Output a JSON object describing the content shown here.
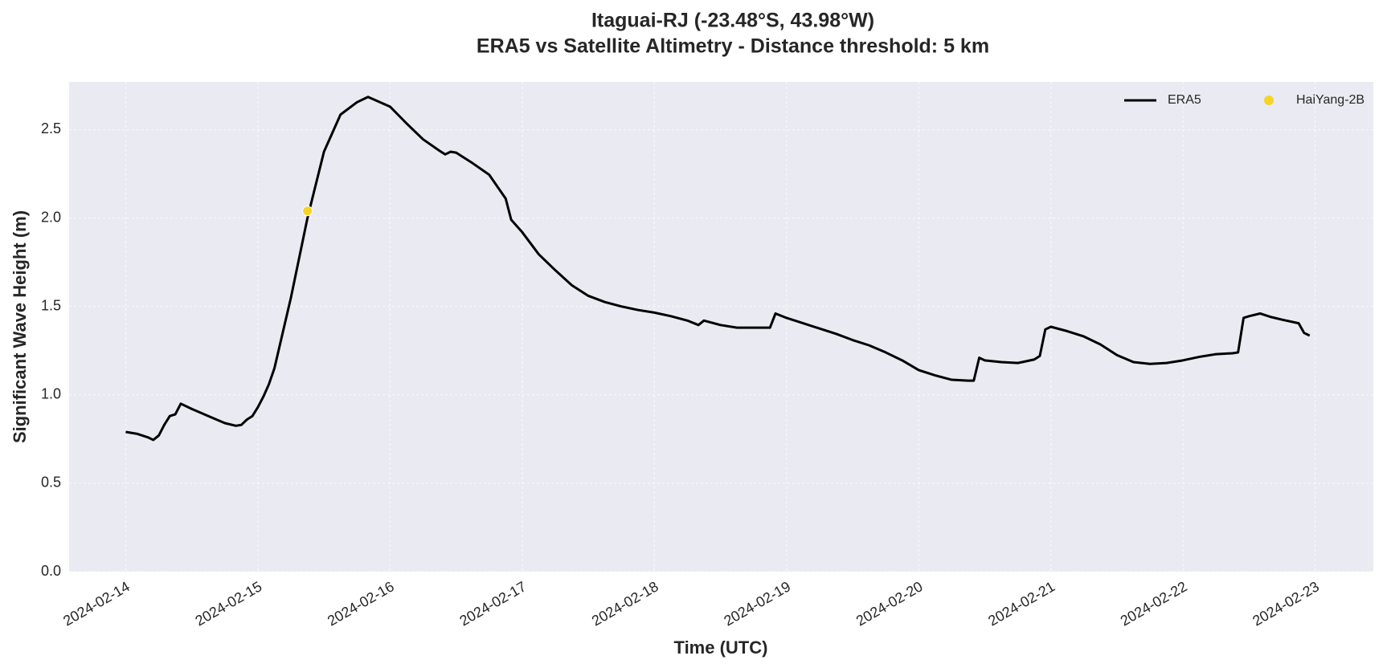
{
  "chart_data": {
    "type": "line",
    "title": "Itaguai-RJ (-23.48°S, 43.98°W)",
    "subtitle": "ERA5 vs Satellite Altimetry - Distance threshold: 5 km",
    "x_label": "Time (UTC)",
    "y_label": "Significant Wave Height (m)",
    "xlim": [
      "2024-02-13T13:43",
      "2024-02-23T10:34"
    ],
    "xticks": [
      "2024-02-14",
      "2024-02-15",
      "2024-02-16",
      "2024-02-17",
      "2024-02-18",
      "2024-02-19",
      "2024-02-20",
      "2024-02-21",
      "2024-02-22",
      "2024-02-23"
    ],
    "ylim": [
      0,
      2.77
    ],
    "yticks": [
      {
        "value": 0,
        "label": "0.0"
      },
      {
        "value": 0.5,
        "label": "0.5"
      },
      {
        "value": 1,
        "label": "1.0"
      },
      {
        "value": 1.5,
        "label": "1.5"
      },
      {
        "value": 2,
        "label": "2.0"
      },
      {
        "value": 2.5,
        "label": "2.5"
      }
    ],
    "grid": true,
    "background": "#eaeaf2",
    "legend": "upper right",
    "series": [
      {
        "name": "ERA5",
        "type": "line",
        "color": "#000000",
        "x": [
          "2024-02-14T00:00",
          "2024-02-14T02:00",
          "2024-02-14T04:00",
          "2024-02-14T05:00",
          "2024-02-14T06:00",
          "2024-02-14T07:00",
          "2024-02-14T08:00",
          "2024-02-14T09:00",
          "2024-02-14T10:00",
          "2024-02-14T12:00",
          "2024-02-14T15:00",
          "2024-02-14T18:00",
          "2024-02-14T20:00",
          "2024-02-14T21:00",
          "2024-02-14T22:00",
          "2024-02-14T23:00",
          "2024-02-15T00:00",
          "2024-02-15T01:00",
          "2024-02-15T02:00",
          "2024-02-15T03:00",
          "2024-02-15T06:00",
          "2024-02-15T09:00",
          "2024-02-15T12:00",
          "2024-02-15T15:00",
          "2024-02-15T18:00",
          "2024-02-15T20:00",
          "2024-02-16T00:00",
          "2024-02-16T03:00",
          "2024-02-16T06:00",
          "2024-02-16T09:00",
          "2024-02-16T10:00",
          "2024-02-16T11:00",
          "2024-02-16T12:00",
          "2024-02-16T15:00",
          "2024-02-16T18:00",
          "2024-02-16T21:00",
          "2024-02-16T22:00",
          "2024-02-17T00:00",
          "2024-02-17T03:00",
          "2024-02-17T06:00",
          "2024-02-17T09:00",
          "2024-02-17T12:00",
          "2024-02-17T15:00",
          "2024-02-17T18:00",
          "2024-02-17T21:00",
          "2024-02-18T00:00",
          "2024-02-18T03:00",
          "2024-02-18T06:00",
          "2024-02-18T08:00",
          "2024-02-18T09:00",
          "2024-02-18T12:00",
          "2024-02-18T15:00",
          "2024-02-18T18:00",
          "2024-02-18T21:00",
          "2024-02-18T22:00",
          "2024-02-19T00:00",
          "2024-02-19T03:00",
          "2024-02-19T06:00",
          "2024-02-19T09:00",
          "2024-02-19T12:00",
          "2024-02-19T15:00",
          "2024-02-19T18:00",
          "2024-02-19T21:00",
          "2024-02-20T00:00",
          "2024-02-20T03:00",
          "2024-02-20T06:00",
          "2024-02-20T09:00",
          "2024-02-20T10:00",
          "2024-02-20T11:00",
          "2024-02-20T12:00",
          "2024-02-20T15:00",
          "2024-02-20T18:00",
          "2024-02-20T21:00",
          "2024-02-20T22:00",
          "2024-02-20T23:00",
          "2024-02-21T00:00",
          "2024-02-21T03:00",
          "2024-02-21T06:00",
          "2024-02-21T09:00",
          "2024-02-21T12:00",
          "2024-02-21T15:00",
          "2024-02-21T18:00",
          "2024-02-21T21:00",
          "2024-02-22T00:00",
          "2024-02-22T03:00",
          "2024-02-22T06:00",
          "2024-02-22T09:00",
          "2024-02-22T10:00",
          "2024-02-22T11:00",
          "2024-02-22T12:00",
          "2024-02-22T14:00",
          "2024-02-22T16:00",
          "2024-02-22T18:00",
          "2024-02-22T21:00",
          "2024-02-22T22:00",
          "2024-02-22T23:00"
        ],
        "values": [
          0.79,
          0.78,
          0.76,
          0.745,
          0.77,
          0.83,
          0.88,
          0.89,
          0.95,
          0.92,
          0.88,
          0.84,
          0.825,
          0.83,
          0.86,
          0.88,
          0.93,
          0.99,
          1.06,
          1.15,
          1.55,
          2.0,
          2.375,
          2.585,
          2.655,
          2.685,
          2.63,
          2.535,
          2.445,
          2.38,
          2.36,
          2.375,
          2.37,
          2.31,
          2.245,
          2.11,
          1.99,
          1.92,
          1.795,
          1.705,
          1.62,
          1.56,
          1.525,
          1.5,
          1.48,
          1.465,
          1.445,
          1.42,
          1.395,
          1.42,
          1.395,
          1.38,
          1.38,
          1.38,
          1.46,
          1.435,
          1.405,
          1.375,
          1.345,
          1.31,
          1.28,
          1.24,
          1.195,
          1.14,
          1.11,
          1.085,
          1.08,
          1.08,
          1.21,
          1.195,
          1.185,
          1.18,
          1.2,
          1.22,
          1.37,
          1.385,
          1.36,
          1.33,
          1.285,
          1.225,
          1.185,
          1.175,
          1.18,
          1.195,
          1.215,
          1.23,
          1.235,
          1.24,
          1.435,
          1.445,
          1.46,
          1.44,
          1.425,
          1.405,
          1.35,
          1.335
        ]
      },
      {
        "name": "HaiYang-2B",
        "type": "scatter",
        "color": "#f5d327",
        "x": [
          "2024-02-15T09:00"
        ],
        "values": [
          2.04
        ]
      }
    ]
  }
}
